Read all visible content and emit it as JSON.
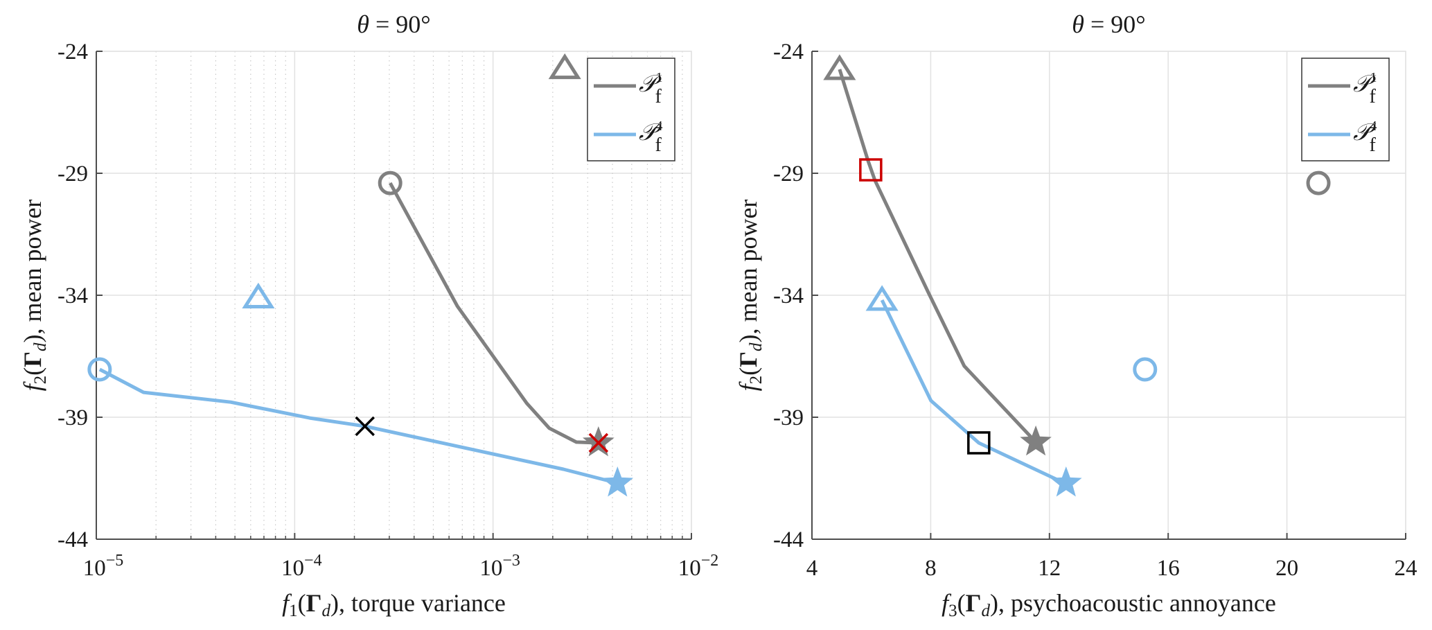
{
  "chart_data": [
    {
      "type": "line",
      "title": "θ = 90°",
      "xlabel": "f1(Γd), torque variance",
      "ylabel": "f2(Γd), mean power",
      "xscale": "log",
      "xlim": [
        1e-05,
        0.01
      ],
      "ylim": [
        -44,
        -24
      ],
      "xticks": [
        1e-05,
        0.0001,
        0.001,
        0.01
      ],
      "xtick_labels": [
        {
          "base": "10",
          "exp": "−5"
        },
        {
          "base": "10",
          "exp": "−4"
        },
        {
          "base": "10",
          "exp": "−3"
        },
        {
          "base": "10",
          "exp": "−2"
        }
      ],
      "yticks": [
        -24,
        -29,
        -34,
        -39,
        -44
      ],
      "ytick_labels": [
        "-24",
        "-29",
        "-34",
        "-39",
        "-44"
      ],
      "grid": true,
      "minor_grid": true,
      "legend_position": "top-right",
      "series": [
        {
          "name": "P_f^1",
          "legend_label": {
            "main": "𝒫",
            "sup": "1",
            "sub": "f"
          },
          "color": "#808080",
          "x": [
            0.000303,
            0.000661,
            0.00148,
            0.00192,
            0.00263,
            0.0034
          ],
          "y": [
            -29.4,
            -34.45,
            -38.43,
            -39.45,
            -40.02,
            -40.05
          ]
        },
        {
          "name": "P_f^4",
          "legend_label": {
            "main": "𝒫",
            "sup": "4",
            "sub": "f"
          },
          "color": "#7db8e8",
          "x": [
            1.04e-05,
            1.73e-05,
            4.76e-05,
            0.000119,
            0.000226,
            0.00226,
            0.00424
          ],
          "y": [
            -37.04,
            -37.98,
            -38.38,
            -39.03,
            -39.37,
            -41.13,
            -41.7
          ]
        }
      ],
      "markers": [
        {
          "name": "gray-circle",
          "shape": "circle",
          "color": "#808080",
          "x": 0.000303,
          "y": -29.4
        },
        {
          "name": "gray-triangle",
          "shape": "triangle",
          "color": "#808080",
          "x": 0.0023,
          "y": -24.7
        },
        {
          "name": "gray-star",
          "shape": "star",
          "color": "#808080",
          "x": 0.0034,
          "y": -40.05
        },
        {
          "name": "red-cross",
          "shape": "cross",
          "color": "#cc0000",
          "x": 0.0034,
          "y": -40.05
        },
        {
          "name": "blue-circle",
          "shape": "circle",
          "color": "#7db8e8",
          "x": 1.04e-05,
          "y": -37.04
        },
        {
          "name": "blue-triangle",
          "shape": "triangle",
          "color": "#7db8e8",
          "x": 6.56e-05,
          "y": -34.1
        },
        {
          "name": "blue-star",
          "shape": "star",
          "color": "#7db8e8",
          "x": 0.00424,
          "y": -41.7
        },
        {
          "name": "black-cross",
          "shape": "cross",
          "color": "#000000",
          "x": 0.000226,
          "y": -39.37
        }
      ]
    },
    {
      "type": "line",
      "title": "θ = 90°",
      "xlabel": "f3(Γd), psychoacoustic annoyance",
      "ylabel": "f2(Γd), mean power",
      "xscale": "linear",
      "xlim": [
        4,
        24
      ],
      "ylim": [
        -44,
        -24
      ],
      "xticks": [
        4,
        8,
        12,
        16,
        20,
        24
      ],
      "xtick_labels": [
        "4",
        "8",
        "12",
        "16",
        "20",
        "24"
      ],
      "yticks": [
        -24,
        -29,
        -34,
        -39,
        -44
      ],
      "ytick_labels": [
        "-24",
        "-29",
        "-34",
        "-39",
        "-44"
      ],
      "grid": true,
      "minor_grid": false,
      "legend_position": "top-right",
      "series": [
        {
          "name": "P_f^1",
          "legend_label": {
            "main": "𝒫",
            "sup": "1",
            "sub": "f"
          },
          "color": "#808080",
          "x": [
            4.93,
            5.89,
            6.12,
            7.92,
            9.13,
            11.54
          ],
          "y": [
            -24.74,
            -28.49,
            -29.28,
            -33.89,
            -36.9,
            -40.02
          ]
        },
        {
          "name": "P_f^4",
          "legend_label": {
            "main": "𝒫",
            "sup": "4",
            "sub": "f"
          },
          "color": "#7db8e8",
          "x": [
            6.36,
            8.01,
            9.62,
            12.56
          ],
          "y": [
            -34.2,
            -38.32,
            -40.05,
            -41.73
          ]
        }
      ],
      "markers": [
        {
          "name": "gray-triangle",
          "shape": "triangle",
          "color": "#808080",
          "x": 4.93,
          "y": -24.74
        },
        {
          "name": "gray-circle",
          "shape": "circle",
          "color": "#808080",
          "x": 21.06,
          "y": -29.4
        },
        {
          "name": "gray-star",
          "shape": "star",
          "color": "#808080",
          "x": 11.54,
          "y": -40.02
        },
        {
          "name": "red-square",
          "shape": "square",
          "color": "#cc0000",
          "x": 5.98,
          "y": -28.86
        },
        {
          "name": "blue-triangle",
          "shape": "triangle",
          "color": "#7db8e8",
          "x": 6.36,
          "y": -34.2
        },
        {
          "name": "blue-circle",
          "shape": "circle",
          "color": "#7db8e8",
          "x": 15.22,
          "y": -37.04
        },
        {
          "name": "blue-star",
          "shape": "star",
          "color": "#7db8e8",
          "x": 12.56,
          "y": -41.7
        },
        {
          "name": "black-square",
          "shape": "square",
          "color": "#000000",
          "x": 9.62,
          "y": -40.05
        }
      ]
    }
  ]
}
